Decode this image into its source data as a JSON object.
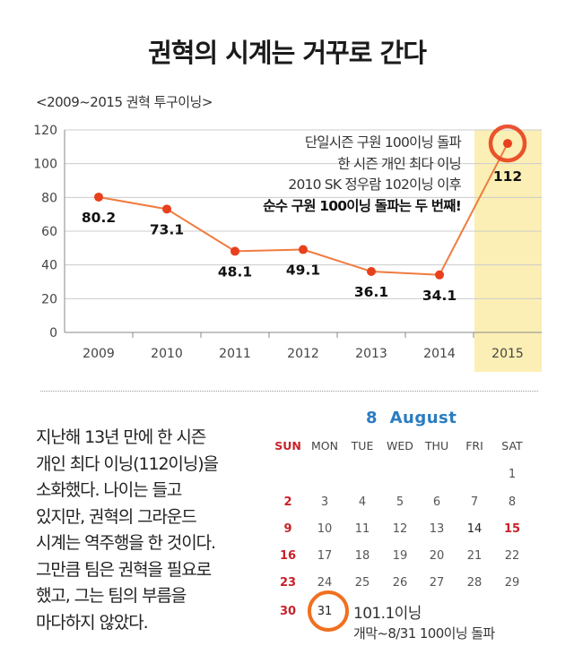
{
  "title": "권혁의 시계는 거꾸로 간다",
  "chart_data": {
    "type": "line",
    "title": "<2009~2015 권혁 투구이닝>",
    "categories": [
      "2009",
      "2010",
      "2011",
      "2012",
      "2013",
      "2014",
      "2015"
    ],
    "values": [
      80.2,
      73.1,
      48.1,
      49.1,
      36.1,
      34.1,
      112
    ],
    "value_labels": [
      "80.2",
      "73.1",
      "48.1",
      "49.1",
      "36.1",
      "34.1",
      "112"
    ],
    "ylim": [
      0,
      120
    ],
    "yticks": [
      "0",
      "20",
      "40",
      "60",
      "80",
      "100",
      "120"
    ],
    "grid": true,
    "highlight_category": "2015",
    "line_color": "#f07b3f",
    "marker_color": "#e8401c",
    "highlight_bg": "#fbefb5",
    "annotation": {
      "lines": [
        "단일시즌 구원 100이닝 돌파",
        "한 시즌 개인 최다 이닝",
        "2010 SK 정우람 102이닝 이후"
      ],
      "strong": "순수 구원 100이닝 돌파는 두 번째!"
    }
  },
  "paragraph": [
    "지난해 13년 만에 한 시즌",
    "개인 최다 이닝(112이닝)을",
    "소화했다. 나이는 들고",
    "있지만, 권혁의 그라운드",
    "시계는 역주행을 한 것이다.",
    "그만큼 팀은 권혁을 필요로",
    "했고, 그는 팀의 부름을",
    "마다하지 않았다."
  ],
  "calendar": {
    "month_number": "8",
    "month_name": "August",
    "weekdays": [
      "SUN",
      "MON",
      "TUE",
      "WED",
      "THU",
      "FRI",
      "SAT"
    ],
    "weeks": [
      [
        "",
        "",
        "",
        "",
        "",
        "",
        "1"
      ],
      [
        "2",
        "3",
        "4",
        "5",
        "6",
        "7",
        "8"
      ],
      [
        "9",
        "10",
        "11",
        "12",
        "13",
        "14",
        "15"
      ],
      [
        "16",
        "17",
        "18",
        "19",
        "20",
        "21",
        "22"
      ],
      [
        "23",
        "24",
        "25",
        "26",
        "27",
        "28",
        "29"
      ],
      [
        "30",
        "31",
        "",
        "",
        "",
        "",
        ""
      ]
    ],
    "highlight_day": "31",
    "note_big": "101.1이닝",
    "note_small": "개막~8/31 100이닝 돌파",
    "accent_color": "#2a7cc0",
    "holiday_color": "#c8222a",
    "circle_color": "#f07020"
  }
}
